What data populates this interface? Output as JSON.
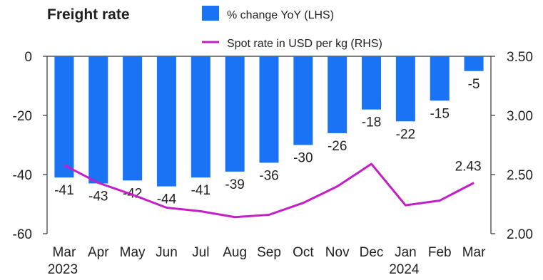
{
  "chart_data": {
    "type": "bar+line",
    "title": "Freight rate",
    "categories": [
      "Mar",
      "Apr",
      "May",
      "Jun",
      "Jul",
      "Aug",
      "Sep",
      "Oct",
      "Nov",
      "Dec",
      "Jan",
      "Feb",
      "Mar"
    ],
    "year_labels": [
      {
        "category_index": 0,
        "label": "2023"
      },
      {
        "category_index": 10,
        "label": "2024"
      }
    ],
    "series": [
      {
        "name": "% change YoY (LHS)",
        "type": "bar",
        "axis": "left",
        "color": "#1a73f5",
        "values": [
          -41,
          -43,
          -42,
          -44,
          -41,
          -39,
          -36,
          -30,
          -26,
          -18,
          -22,
          -15,
          -5
        ],
        "labels": [
          "-41",
          "-43",
          "-42",
          "-44",
          "-41",
          "-39",
          "-36",
          "-30",
          "-26",
          "-18",
          "-22",
          "-15",
          "-5"
        ]
      },
      {
        "name": "Spot rate in USD per kg (RHS)",
        "type": "line",
        "axis": "right",
        "color": "#c31ec8",
        "values": [
          2.58,
          2.43,
          2.33,
          2.22,
          2.19,
          2.14,
          2.16,
          2.26,
          2.4,
          2.59,
          2.24,
          2.28,
          2.43
        ],
        "end_label": "2.43"
      }
    ],
    "y_left": {
      "range": [
        -60,
        0
      ],
      "ticks": [
        "0",
        "-20",
        "-40",
        "-60"
      ],
      "tick_values": [
        0,
        -20,
        -40,
        -60
      ]
    },
    "y_right": {
      "range": [
        2.0,
        3.5
      ],
      "ticks": [
        "3.50",
        "3.00",
        "2.50",
        "2.00"
      ],
      "tick_values": [
        3.5,
        3.0,
        2.5,
        2.0
      ]
    },
    "grid": false,
    "legend_placement": "top"
  }
}
